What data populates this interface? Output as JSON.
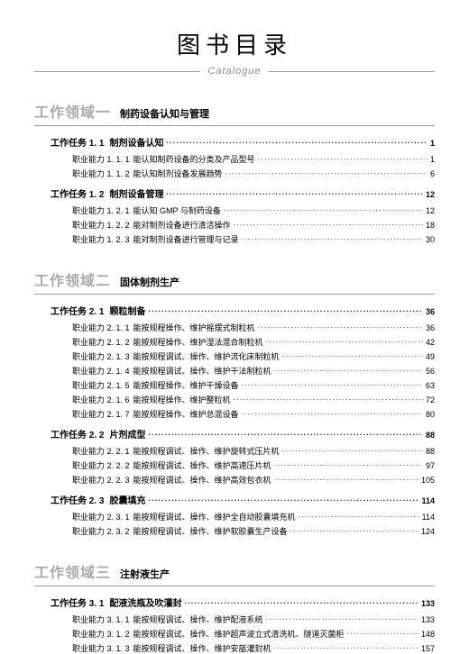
{
  "header": {
    "title": "图书目录",
    "subtitle": "Catalogue"
  },
  "sections": [
    {
      "label": "工作领域一",
      "title": "制药设备认知与管理",
      "tasks": [
        {
          "label": "工作任务 1. 1",
          "title": "制剂设备认知",
          "page": "1",
          "items": [
            {
              "label": "职业能力 1. 1. 1",
              "title": "能认知制药设备的分类及产品型号",
              "page": "1"
            },
            {
              "label": "职业能力 1. 1. 2",
              "title": "能认知制剂设备发展趋势",
              "page": "6"
            }
          ]
        },
        {
          "label": "工作任务 1. 2",
          "title": "制剂设备管理",
          "page": "12",
          "items": [
            {
              "label": "职业能力 1. 2. 1",
              "title": "能认知 GMP 与制药设备",
              "page": "12"
            },
            {
              "label": "职业能力 1. 2. 2",
              "title": "能对制剂设备进行清洁操作",
              "page": "18"
            },
            {
              "label": "职业能力 1. 2. 3",
              "title": "能对制剂设备进行管理与记录",
              "page": "30"
            }
          ]
        }
      ]
    },
    {
      "label": "工作领域二",
      "title": "固体制剂生产",
      "tasks": [
        {
          "label": "工作任务 2. 1",
          "title": "颗粒制备",
          "page": "36",
          "items": [
            {
              "label": "职业能力 2. 1. 1",
              "title": "能按规程操作、维护摇摆式制粒机",
              "page": "36"
            },
            {
              "label": "职业能力 2. 1. 2",
              "title": "能按规程操作、维护湿法混合制粒机",
              "page": "42"
            },
            {
              "label": "职业能力 2. 1. 3",
              "title": "能按规程调试、操作、维护流化床制粒机",
              "page": "49"
            },
            {
              "label": "职业能力 2. 1. 4",
              "title": "能按规程调试、操作、维护干法制粒机",
              "page": "56"
            },
            {
              "label": "职业能力 2. 1. 5",
              "title": "能按规程操作、维护干燥设备",
              "page": "63"
            },
            {
              "label": "职业能力 2. 1. 6",
              "title": "能按规程操作、维护整粒机",
              "page": "72"
            },
            {
              "label": "职业能力 2. 1. 7",
              "title": "能按规程操作、维护总混设备",
              "page": "80"
            }
          ]
        },
        {
          "label": "工作任务 2. 2",
          "title": "片剂成型",
          "page": "88",
          "items": [
            {
              "label": "职业能力 2. 2. 1",
              "title": "能按规程调试、操作、维护旋转式压片机",
              "page": "88"
            },
            {
              "label": "职业能力 2. 2. 2",
              "title": "能按规程调试、操作、维护高速压片机",
              "page": "97"
            },
            {
              "label": "职业能力 2. 2. 3",
              "title": "能按规程调试、操作、维护高效包衣机",
              "page": "105"
            }
          ]
        },
        {
          "label": "工作任务 2. 3",
          "title": "胶囊填充",
          "page": "114",
          "items": [
            {
              "label": "职业能力 2. 3. 1",
              "title": "能按规程调试、操作、维护全自动胶囊填充机",
              "page": "114"
            },
            {
              "label": "职业能力 2. 3. 2",
              "title": "能按规程调试、操作、维护软胶囊生产设备",
              "page": "124"
            }
          ]
        }
      ]
    },
    {
      "label": "工作领域三",
      "title": "注射液生产",
      "tasks": [
        {
          "label": "工作任务 3. 1",
          "title": "配液洗瓶及吹灌封",
          "page": "133",
          "items": [
            {
              "label": "职业能力 3. 1. 1",
              "title": "能按规程调试、操作、维护配液系统",
              "page": "133"
            },
            {
              "label": "职业能力 3. 1. 2",
              "title": "能按规程调试、操作、维护超声波立式清洗机、隧道灭菌柜",
              "page": "148"
            },
            {
              "label": "职业能力 3. 1. 3",
              "title": "能按规程调试、操作、维护安瓿灌封机",
              "page": "157"
            }
          ]
        }
      ]
    }
  ]
}
